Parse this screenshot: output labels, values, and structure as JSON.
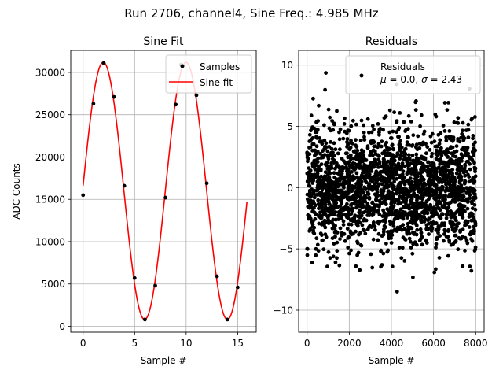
{
  "suptitle": "Run 2706, channel4, Sine Freq.: 4.985 MHz",
  "chart_data": [
    {
      "type": "line",
      "title": "Sine Fit",
      "xlabel": "Sample #",
      "ylabel": "ADC Counts",
      "xlim": [
        -1.2,
        16.8
      ],
      "ylim": [
        -700,
        32600
      ],
      "xticks": [
        0,
        5,
        10,
        15
      ],
      "yticks": [
        0,
        5000,
        10000,
        15000,
        20000,
        25000,
        30000
      ],
      "grid": true,
      "legend": "top-right",
      "series": [
        {
          "name": "Samples",
          "kind": "scatter",
          "color": "#000000",
          "x": [
            0,
            1,
            2,
            3,
            4,
            5,
            6,
            7,
            8,
            9,
            9.5,
            11,
            12,
            13,
            14,
            15
          ],
          "y": [
            15500,
            26300,
            31100,
            27100,
            16600,
            5700,
            800,
            4800,
            15200,
            26200,
            30900,
            27300,
            16900,
            5900,
            800,
            4600
          ]
        },
        {
          "name": "Sine fit",
          "kind": "line",
          "color": "#ff0000",
          "model": {
            "offset": 16000,
            "amplitude": 15200,
            "period": 8.03,
            "phase_deg": 2.3,
            "x_start": 0,
            "x_end": 15.9
          }
        }
      ]
    },
    {
      "type": "scatter",
      "title": "Residuals",
      "xlabel": "Sample #",
      "ylabel": "",
      "xlim": [
        -400,
        8400
      ],
      "ylim": [
        -11.8,
        11.2
      ],
      "xticks": [
        0,
        2000,
        4000,
        6000,
        8000
      ],
      "yticks": [
        -10,
        -5,
        0,
        5,
        10
      ],
      "grid": true,
      "legend": "top-right",
      "series": [
        {
          "name": "Residuals",
          "stat_mu": "0.0",
          "stat_sigma": "2.43",
          "color": "#000000",
          "n_points": 8000,
          "x_range": [
            0,
            8000
          ],
          "sigma": 2.43
        }
      ]
    }
  ]
}
